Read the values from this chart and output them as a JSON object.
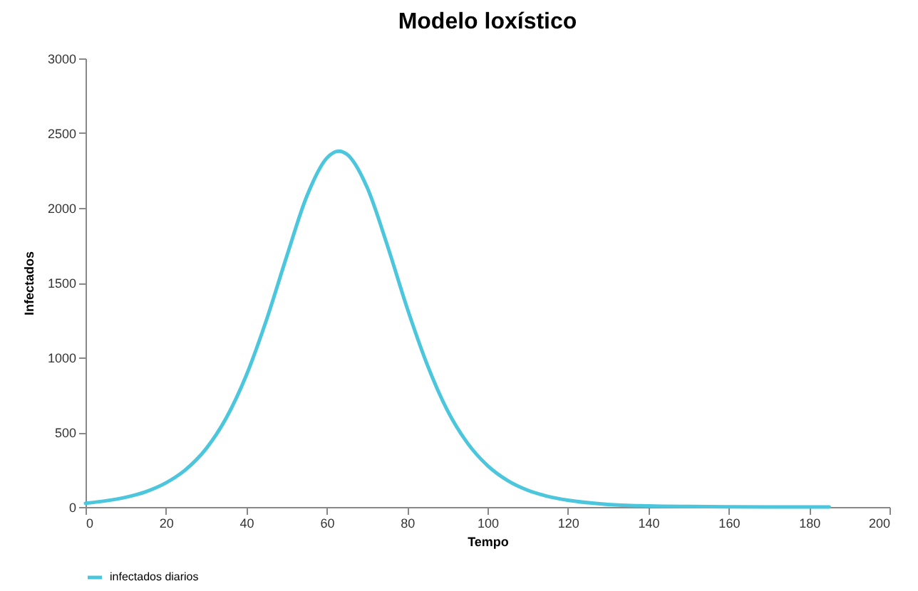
{
  "chart_data": {
    "type": "line",
    "title": "Modelo loxístico",
    "xlabel": "Tempo",
    "ylabel": "Infectados",
    "x": [
      0,
      5,
      10,
      15,
      20,
      25,
      30,
      35,
      40,
      45,
      50,
      55,
      60,
      63,
      65,
      70,
      75,
      80,
      85,
      90,
      95,
      100,
      105,
      110,
      115,
      120,
      130,
      140,
      150,
      160,
      170,
      185
    ],
    "series": [
      {
        "name": "infectados diarios",
        "color": "#4bc6dd",
        "values": [
          25,
          41,
          65,
          102,
          161,
          252,
          390,
          595,
          881,
          1250,
          1672,
          2075,
          2333,
          2380,
          2359,
          2140,
          1756,
          1331,
          952,
          647,
          428,
          277,
          177,
          112,
          71,
          45,
          17,
          7,
          3,
          1,
          0,
          0
        ]
      }
    ],
    "xlim": [
      0,
      200
    ],
    "xticks": [
      0,
      20,
      40,
      60,
      80,
      100,
      120,
      140,
      160,
      180,
      200
    ],
    "ylim": [
      0,
      3000
    ],
    "yticks": [
      0,
      500,
      1000,
      1500,
      2000,
      2500,
      3000
    ],
    "grid": false,
    "legend": "bottom"
  }
}
